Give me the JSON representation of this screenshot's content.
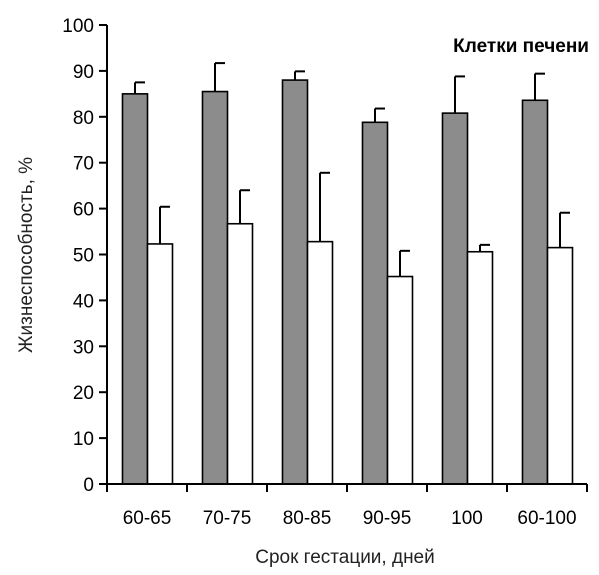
{
  "chart_data": {
    "type": "bar",
    "title": "Клетки печени",
    "xlabel": "Срок гестации, дней",
    "ylabel": "Жизнеспособность, %",
    "ylim": [
      0,
      100
    ],
    "yticks": [
      "0",
      "10",
      "20",
      "30",
      "40",
      "50",
      "60",
      "70",
      "80",
      "90",
      "100"
    ],
    "grid": false,
    "categories": [
      "60-65",
      "70-75",
      "80-85",
      "90-95",
      "100",
      "60-100"
    ],
    "series": [
      {
        "values": [
          85,
          85.5,
          88,
          78.8,
          80.8,
          83.6
        ],
        "errors": [
          2.5,
          6.2,
          1.9,
          3,
          8,
          5.8
        ],
        "color": "#8c8c8c"
      },
      {
        "values": [
          52.3,
          56.7,
          52.8,
          45.2,
          50.6,
          51.5
        ],
        "errors": [
          8.1,
          7.3,
          15,
          5.6,
          1.5,
          7.6
        ],
        "color": "#ffffff"
      }
    ]
  }
}
